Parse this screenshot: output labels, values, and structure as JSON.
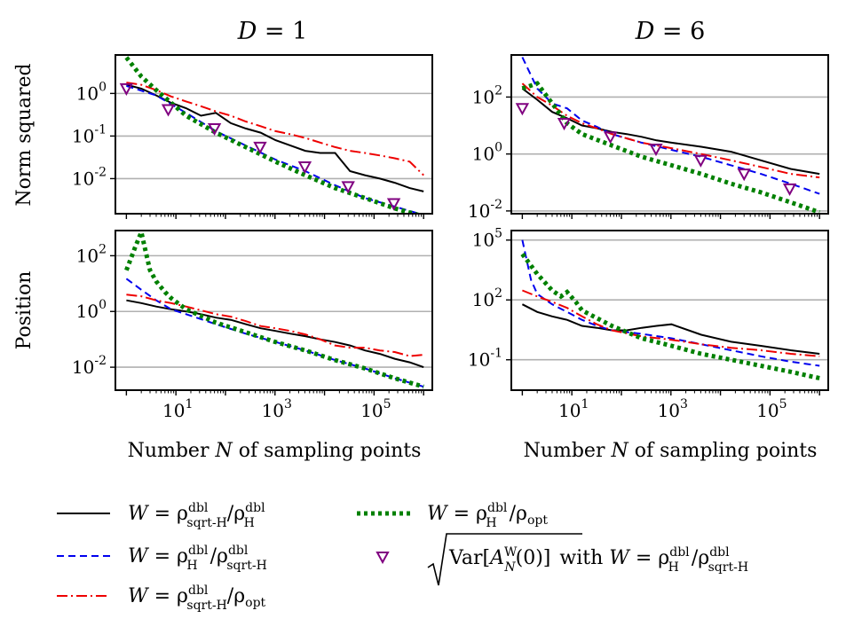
{
  "chart_data": {
    "type": "line",
    "xlabel": "Number N of sampling points",
    "column_titles": [
      "D = 1",
      "D = 6"
    ],
    "row_labels": [
      "Norm squared",
      "Position"
    ],
    "x_ticks": [
      "10^1",
      "10^3",
      "10^5"
    ],
    "x_tick_values": [
      10,
      1000,
      100000
    ],
    "xlim": [
      0.6,
      1500000
    ],
    "x_scale": "log",
    "grid": "horizontal",
    "legend_position": "bottom",
    "colors": {
      "sqrtH_over_H": "#000000",
      "H_over_sqrtH": "#0000ee",
      "sqrtH_over_opt": "#ee0000",
      "H_over_opt": "#008000",
      "variance_marker": "#800080"
    },
    "legend": [
      {
        "key": "sqrtH_over_H",
        "style": "solid",
        "text": "W = ρ_sqrt-H^dbl / ρ_H^dbl"
      },
      {
        "key": "H_over_sqrtH",
        "style": "dashed",
        "text": "W = ρ_H^dbl / ρ_sqrt-H^dbl"
      },
      {
        "key": "sqrtH_over_opt",
        "style": "dashdot",
        "text": "W = ρ_sqrt-H^dbl / ρ_opt"
      },
      {
        "key": "H_over_opt",
        "style": "dotted",
        "text": "W = ρ_H^dbl / ρ_opt"
      },
      {
        "key": "variance_marker",
        "style": "marker",
        "text": "√Var[A_N^W(0)] with W = ρ_H^dbl / ρ_sqrt-H^dbl"
      }
    ],
    "panels": [
      {
        "name": "norm-squared-D1",
        "row": 0,
        "col": 0,
        "ylim": [
          0.0015,
          8
        ],
        "y_ticks": [
          "10^0",
          "10^-1",
          "10^-2"
        ],
        "y_tick_values": [
          1,
          0.1,
          0.01
        ],
        "series": [
          {
            "key": "sqrtH_over_H",
            "x": [
              1,
              2,
              4,
              8,
              16,
              32,
              64,
              128,
              256,
              512,
              1024,
              2048,
              4096,
              8192,
              16384,
              32768,
              65536,
              131072,
              262144,
              524288,
              1000000
            ],
            "y": [
              1.6,
              1.3,
              0.9,
              0.6,
              0.45,
              0.3,
              0.35,
              0.2,
              0.15,
              0.12,
              0.08,
              0.06,
              0.045,
              0.04,
              0.04,
              0.015,
              0.012,
              0.01,
              0.008,
              0.006,
              0.005
            ]
          },
          {
            "key": "H_over_sqrtH",
            "x": [
              1,
              4,
              16,
              64,
              256,
              1024,
              4096,
              16384,
              65536,
              262144,
              1000000
            ],
            "y": [
              1.5,
              0.9,
              0.35,
              0.13,
              0.06,
              0.028,
              0.015,
              0.007,
              0.0035,
              0.0022,
              0.0014
            ]
          },
          {
            "key": "sqrtH_over_opt",
            "x": [
              1,
              2,
              4,
              8,
              16,
              32,
              64,
              128,
              256,
              512,
              1024,
              2048,
              4096,
              8192,
              16384,
              32768,
              65536,
              131072,
              262144,
              524288,
              1000000
            ],
            "y": [
              1.8,
              1.6,
              1.2,
              0.85,
              0.65,
              0.5,
              0.38,
              0.3,
              0.22,
              0.17,
              0.13,
              0.11,
              0.09,
              0.07,
              0.055,
              0.045,
              0.04,
              0.035,
              0.03,
              0.025,
              0.012
            ]
          },
          {
            "key": "H_over_opt",
            "x": [
              1,
              2,
              4,
              8,
              16,
              64,
              256,
              1024,
              4096,
              16384,
              65536,
              262144,
              1000000
            ],
            "y": [
              7,
              2.5,
              1.2,
              0.6,
              0.3,
              0.12,
              0.055,
              0.025,
              0.012,
              0.006,
              0.0035,
              0.002,
              0.0013
            ]
          },
          {
            "key": "variance_marker",
            "x": [
              1,
              7,
              60,
              500,
              4000,
              30000,
              250000
            ],
            "y": [
              1.3,
              0.42,
              0.15,
              0.055,
              0.019,
              0.0065,
              0.0026
            ]
          }
        ]
      },
      {
        "name": "norm-squared-D6",
        "row": 0,
        "col": 1,
        "ylim": [
          0.008,
          3000
        ],
        "y_ticks": [
          "10^2",
          "10^0",
          "10^-2"
        ],
        "y_tick_values": [
          100,
          1,
          0.01
        ],
        "series": [
          {
            "key": "sqrtH_over_H",
            "x": [
              1,
              2,
              4,
              8,
              16,
              32,
              64,
              128,
              256,
              512,
              1024,
              4096,
              16384,
              65536,
              262144,
              1000000
            ],
            "y": [
              200,
              80,
              30,
              18,
              10,
              8,
              6,
              5,
              4,
              3,
              2.5,
              1.8,
              1.2,
              0.6,
              0.3,
              0.2
            ]
          },
          {
            "key": "H_over_sqrtH",
            "x": [
              1,
              2,
              4,
              8,
              16,
              32,
              64,
              256,
              1024,
              4096,
              16384,
              65536,
              262144,
              1000000
            ],
            "y": [
              2500,
              200,
              60,
              40,
              15,
              9,
              5,
              2.5,
              1.4,
              0.8,
              0.4,
              0.2,
              0.09,
              0.04
            ]
          },
          {
            "key": "sqrtH_over_opt",
            "x": [
              1,
              2,
              4,
              8,
              16,
              32,
              64,
              256,
              1024,
              4096,
              16384,
              65536,
              262144,
              1000000
            ],
            "y": [
              300,
              100,
              50,
              22,
              12,
              8,
              5,
              2.5,
              1.6,
              1,
              0.6,
              0.35,
              0.2,
              0.15
            ]
          },
          {
            "key": "H_over_opt",
            "x": [
              1,
              2,
              4,
              8,
              16,
              64,
              256,
              1024,
              4096,
              16384,
              65536,
              262144,
              1000000
            ],
            "y": [
              200,
              300,
              60,
              12,
              5,
              2,
              0.8,
              0.4,
              0.2,
              0.09,
              0.045,
              0.02,
              0.009
            ]
          },
          {
            "key": "variance_marker",
            "x": [
              1,
              7,
              60,
              500,
              4000,
              30000,
              250000
            ],
            "y": [
              40,
              12,
              4,
              1.5,
              0.6,
              0.2,
              0.06
            ]
          }
        ]
      },
      {
        "name": "position-D1",
        "row": 1,
        "col": 0,
        "ylim": [
          0.0015,
          800
        ],
        "y_ticks": [
          "10^2",
          "10^0",
          "10^-2"
        ],
        "y_tick_values": [
          100,
          1,
          0.01
        ],
        "series": [
          {
            "key": "sqrtH_over_H",
            "x": [
              1,
              2,
              4,
              8,
              16,
              32,
              64,
              128,
              256,
              512,
              1024,
              2048,
              4096,
              8192,
              16384,
              32768,
              65536,
              131072,
              262144,
              524288,
              1000000
            ],
            "y": [
              2.5,
              2,
              1.5,
              1.2,
              1,
              0.8,
              0.6,
              0.5,
              0.35,
              0.25,
              0.2,
              0.16,
              0.13,
              0.1,
              0.08,
              0.06,
              0.04,
              0.03,
              0.02,
              0.015,
              0.01
            ]
          },
          {
            "key": "H_over_sqrtH",
            "x": [
              1,
              2,
              4,
              8,
              16,
              64,
              256,
              1024,
              4096,
              16384,
              65536,
              262144,
              1000000
            ],
            "y": [
              15,
              6,
              2.5,
              1.2,
              0.8,
              0.35,
              0.16,
              0.08,
              0.04,
              0.018,
              0.009,
              0.004,
              0.002
            ]
          },
          {
            "key": "sqrtH_over_opt",
            "x": [
              1,
              2,
              4,
              8,
              16,
              32,
              64,
              128,
              256,
              512,
              1024,
              2048,
              4096,
              8192,
              16384,
              32768,
              65536,
              131072,
              262144,
              524288,
              1000000
            ],
            "y": [
              4,
              3.5,
              2.5,
              2,
              1.5,
              1.1,
              0.8,
              0.65,
              0.45,
              0.3,
              0.25,
              0.2,
              0.15,
              0.1,
              0.06,
              0.05,
              0.05,
              0.04,
              0.035,
              0.025,
              0.028
            ]
          },
          {
            "key": "H_over_opt",
            "x": [
              1,
              1.5,
              2,
              2.5,
              3,
              4,
              6,
              8,
              16,
              64,
              256,
              1024,
              4096,
              16384,
              65536,
              262144,
              1000000
            ],
            "y": [
              30,
              200,
              700,
              120,
              30,
              12,
              5,
              3,
              1.2,
              0.4,
              0.18,
              0.08,
              0.04,
              0.018,
              0.009,
              0.004,
              0.002
            ]
          }
        ]
      },
      {
        "name": "position-D6",
        "row": 1,
        "col": 1,
        "ylim": [
          0.003,
          300000
        ],
        "y_ticks": [
          "10^5",
          "10^2",
          "10^-1"
        ],
        "y_tick_values": [
          100000,
          100,
          0.1
        ],
        "series": [
          {
            "key": "sqrtH_over_H",
            "x": [
              1,
              2,
              4,
              8,
              16,
              32,
              64,
              128,
              256,
              512,
              1024,
              4096,
              16384,
              65536,
              262144,
              1000000
            ],
            "y": [
              60,
              25,
              15,
              10,
              5,
              4,
              3,
              3,
              4,
              5,
              6,
              1.8,
              0.8,
              0.5,
              0.3,
              0.2
            ]
          },
          {
            "key": "H_over_sqrtH",
            "x": [
              1,
              1.5,
              2,
              4,
              8,
              16,
              32,
              64,
              256,
              1024,
              4096,
              16384,
              65536,
              262144,
              1000000
            ],
            "y": [
              100000,
              1000,
              200,
              60,
              25,
              10,
              5,
              3,
              2,
              1.2,
              0.6,
              0.3,
              0.15,
              0.08,
              0.05
            ]
          },
          {
            "key": "sqrtH_over_opt",
            "x": [
              1,
              2,
              4,
              8,
              16,
              32,
              64,
              256,
              1024,
              4096,
              16384,
              65536,
              262144,
              1000000
            ],
            "y": [
              300,
              150,
              80,
              40,
              15,
              6,
              3,
              1.5,
              1,
              0.6,
              0.4,
              0.3,
              0.2,
              0.15
            ]
          },
          {
            "key": "H_over_opt",
            "x": [
              1,
              2,
              4,
              6,
              8,
              12,
              16,
              64,
              256,
              1024,
              4096,
              16384,
              65536,
              262144,
              1000000
            ],
            "y": [
              20000,
              2000,
              300,
              150,
              250,
              80,
              30,
              5,
              1.2,
              0.5,
              0.2,
              0.1,
              0.05,
              0.025,
              0.012
            ]
          }
        ]
      }
    ]
  }
}
